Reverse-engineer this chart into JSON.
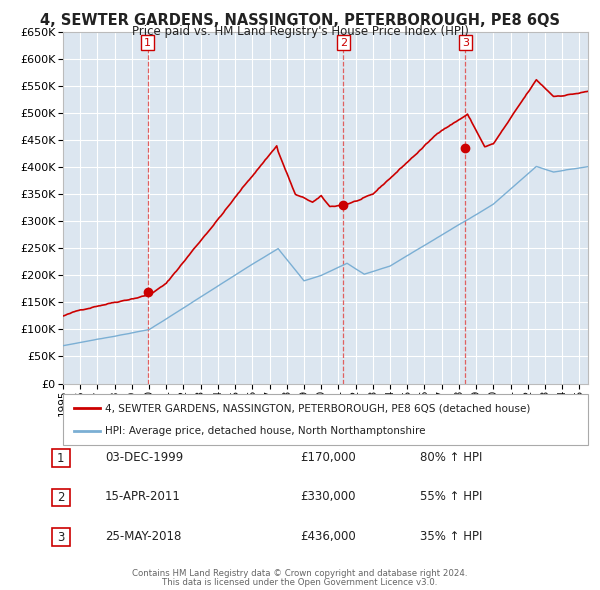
{
  "title": "4, SEWTER GARDENS, NASSINGTON, PETERBOROUGH, PE8 6QS",
  "subtitle": "Price paid vs. HM Land Registry's House Price Index (HPI)",
  "background_color": "#ffffff",
  "plot_background": "#dce6f0",
  "grid_color": "#ffffff",
  "red_color": "#cc0000",
  "blue_color": "#7bafd4",
  "dashed_color": "#e06060",
  "purchases": [
    {
      "num": 1,
      "date": "03-DEC-1999",
      "price": 170000,
      "pct": "80%",
      "x": 1999.92
    },
    {
      "num": 2,
      "date": "15-APR-2011",
      "price": 330000,
      "pct": "55%",
      "x": 2011.29
    },
    {
      "num": 3,
      "date": "25-MAY-2018",
      "price": 436000,
      "pct": "35%",
      "x": 2018.38
    }
  ],
  "ylim": [
    0,
    650000
  ],
  "yticks": [
    0,
    50000,
    100000,
    150000,
    200000,
    250000,
    300000,
    350000,
    400000,
    450000,
    500000,
    550000,
    600000,
    650000
  ],
  "xlim": [
    1995,
    2025.5
  ],
  "legend_label_red": "4, SEWTER GARDENS, NASSINGTON, PETERBOROUGH, PE8 6QS (detached house)",
  "legend_label_blue": "HPI: Average price, detached house, North Northamptonshire",
  "footer1": "Contains HM Land Registry data © Crown copyright and database right 2024.",
  "footer2": "This data is licensed under the Open Government Licence v3.0."
}
